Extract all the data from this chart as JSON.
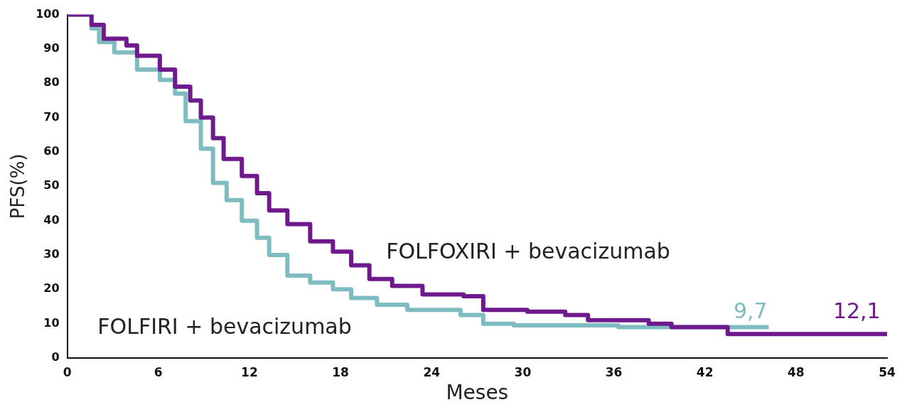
{
  "chart_data": {
    "type": "step",
    "xlabel": "Meses",
    "ylabel": "PFS(%)",
    "xlim": [
      0,
      54
    ],
    "xticks": [
      0,
      6,
      12,
      18,
      24,
      30,
      36,
      42,
      48,
      54
    ],
    "ylim": [
      0,
      100
    ],
    "yticks": [
      0,
      10,
      20,
      30,
      40,
      50,
      60,
      70,
      80,
      90,
      100
    ],
    "grid": false,
    "legend": false,
    "marker": "none",
    "line_style": "solid",
    "series": [
      {
        "name": "FOLFOXIRI + bevacizumab",
        "color": "#6f1a8c",
        "x": [
          0,
          1.6,
          2.4,
          3.9,
          4.6,
          6.1,
          7.1,
          8.1,
          8.8,
          9.6,
          10.3,
          11.5,
          12.5,
          13.3,
          14.5,
          16,
          17.5,
          18.7,
          19.9,
          21.4,
          23.4,
          26.1,
          27.4,
          30.3,
          32.8,
          34.3,
          38.3,
          39.8,
          43.5,
          43.5,
          54
        ],
        "values": [
          100,
          97,
          93,
          91,
          88,
          84,
          79,
          75,
          70,
          64,
          58,
          53,
          48,
          43,
          39,
          34,
          31,
          27,
          23,
          21,
          18.5,
          18,
          14,
          13.5,
          12.5,
          11,
          10,
          9,
          9,
          7,
          7
        ]
      },
      {
        "name": "FOLFIRI + bevacizumab",
        "color": "#7fbcc2",
        "x": [
          0,
          1.6,
          2.1,
          3.1,
          4.6,
          6.1,
          7.1,
          7.8,
          8.8,
          9.6,
          10.5,
          11.5,
          12.5,
          13.3,
          14.5,
          16,
          17.5,
          18.7,
          20.4,
          22.4,
          25.9,
          27.4,
          29.4,
          36.3,
          46.2
        ],
        "values": [
          100,
          96,
          92,
          89,
          84,
          81,
          77,
          69,
          61,
          51,
          46,
          40,
          35,
          30,
          24,
          22,
          20,
          17.5,
          15.5,
          14,
          12.5,
          10,
          9.5,
          9,
          9
        ]
      }
    ],
    "annotations": [
      "9,7",
      "12,1"
    ]
  }
}
